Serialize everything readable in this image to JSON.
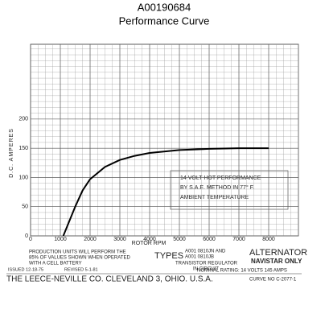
{
  "chart_data": {
    "type": "line",
    "title": "A00190684",
    "subtitle": "Performance Curve",
    "x_label": "ROTOR RPM",
    "y_label": "D.C. AMPERES",
    "x": [
      1100,
      1300,
      1500,
      1750,
      2000,
      2500,
      3000,
      3500,
      4000,
      5000,
      6000,
      7000,
      8000
    ],
    "series": [
      {
        "name": "14 VOLT HOT PERFORMANCE",
        "color": "#000000",
        "values": [
          0,
          25,
          50,
          78,
          97,
          118,
          130,
          137,
          142,
          147,
          149,
          150,
          150
        ]
      }
    ],
    "xlim": [
      0,
      9000
    ],
    "ylim": [
      0,
      328
    ],
    "xticks": [
      0,
      1000,
      2000,
      3000,
      4000,
      5000,
      6000,
      7000,
      8000
    ],
    "yticks": [
      0,
      50,
      100,
      150,
      200
    ],
    "grid": true,
    "annotation": [
      "14 VOLT HOT PERFORMANCE",
      "BY S.A.E. METHOD IN 77° F.",
      "AMBIENT TEMPERATURE"
    ],
    "footer": {
      "production": [
        "PRODUCTION UNITS WILL PERFORM THE",
        "85% OF VALUES SHOWN WHEN OPERATED",
        "WITH A CELL BATTERY"
      ],
      "issued": "ISSUED 12-18-75",
      "revised": "REVISED 5-1-81",
      "types_label": "TYPES",
      "types": [
        "A001 0810JN AND",
        "A001 0810JB"
      ],
      "regulator": [
        "TRANSISTOR REGULATOR",
        "IN CIRCUIT"
      ],
      "alternator": "ALTERNATOR",
      "navistar": "NAVISTAR ONLY",
      "rating": "NOMINAL RATING: 14 VOLTS 145 AMPS",
      "company": "THE LEECE-NEVILLE CO. CLEVELAND 3, OHIO. U.S.A.",
      "curve_no": "CURVE NO C-2077-1"
    }
  }
}
